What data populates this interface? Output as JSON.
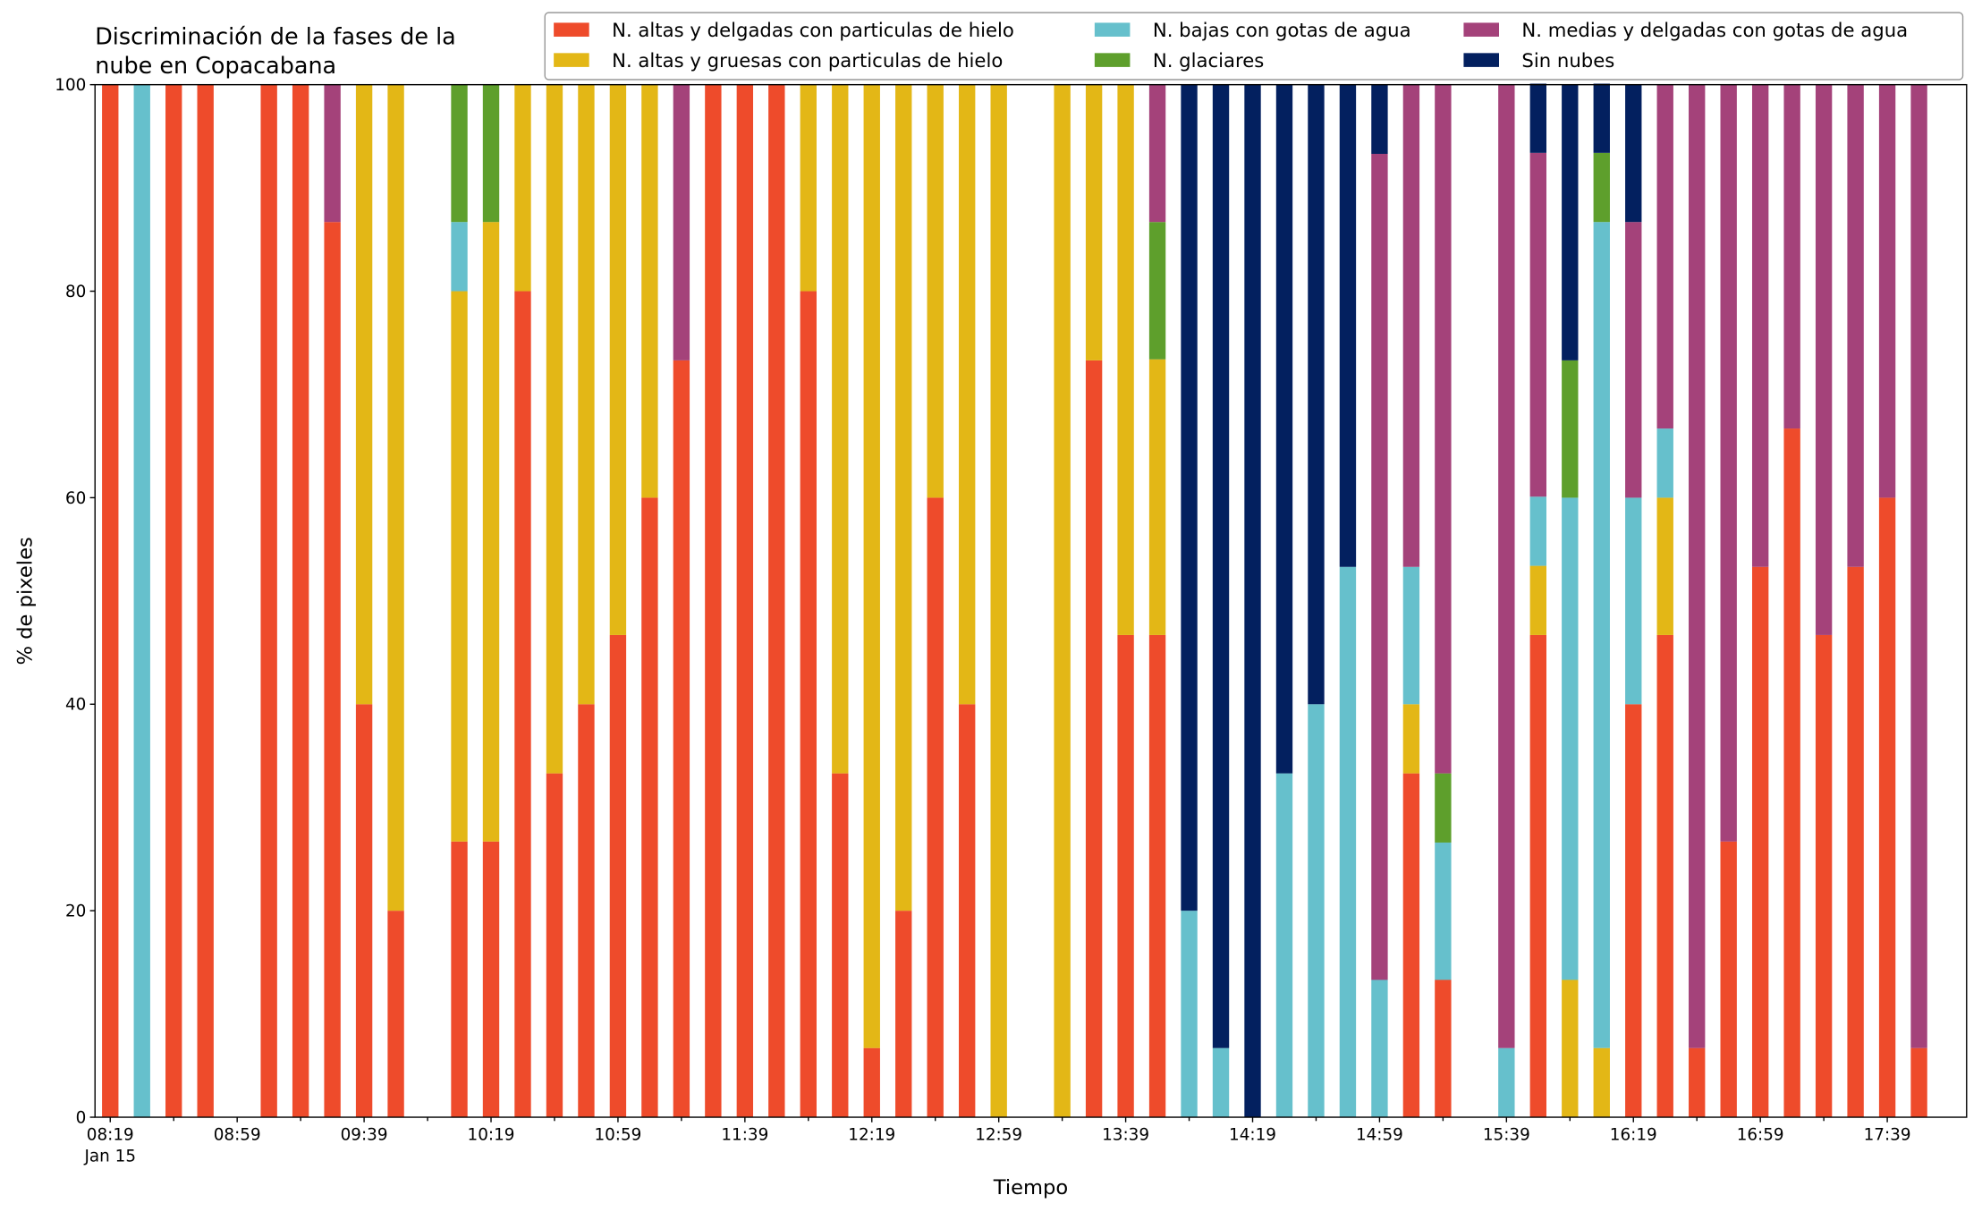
{
  "chart_data": {
    "type": "stacked_bar",
    "title": "Discriminación de la fases de la\nnube en Copacabana",
    "xlabel": "Tiempo",
    "ylabel": "% de pixeles",
    "date_label": "Jan 15",
    "categories": [
      "08:19",
      null,
      null,
      null,
      "08:59",
      null,
      null,
      null,
      "09:39",
      null,
      null,
      null,
      "10:19",
      null,
      null,
      null,
      "10:59",
      null,
      null,
      null,
      "11:39",
      null,
      null,
      null,
      "12:19",
      null,
      null,
      null,
      "12:59",
      null,
      null,
      null,
      "13:39",
      null,
      null,
      null,
      "14:19",
      null,
      null,
      null,
      "14:59",
      null,
      null,
      null,
      "15:39",
      null,
      null,
      null,
      "16:19",
      null,
      null,
      null,
      "16:59",
      null,
      null,
      null,
      "17:39",
      null
    ],
    "ylim": [
      0,
      100
    ],
    "yticks": [
      0,
      20,
      40,
      60,
      80,
      100
    ],
    "legend": "upper right",
    "series": [
      {
        "name": "N. altas y delgadas con particulas de hielo",
        "color": "#ee4b2b",
        "values": [
          100,
          0,
          100,
          100,
          0,
          100,
          100,
          86.7,
          40,
          20,
          0,
          26.7,
          26.7,
          80,
          33.3,
          40,
          46.7,
          60,
          73.3,
          100,
          100,
          100,
          80,
          33.3,
          6.7,
          20,
          60,
          40,
          0,
          0,
          0,
          73.3,
          46.7,
          46.7,
          0,
          0,
          0,
          0,
          0,
          0,
          0,
          33.3,
          13.3,
          0,
          0,
          46.7,
          0,
          0,
          40,
          46.7,
          6.7,
          26.7,
          53.3,
          66.7,
          46.7,
          53.3,
          60,
          6.7
        ]
      },
      {
        "name": "N. altas y gruesas con particulas de hielo",
        "color": "#e3b716",
        "values": [
          0,
          0,
          0,
          0,
          0,
          0,
          0,
          0,
          60,
          80,
          0,
          53.3,
          60,
          20,
          66.7,
          60,
          53.3,
          40,
          0,
          0,
          0,
          0,
          20,
          66.7,
          93.3,
          80,
          40,
          60,
          100,
          0,
          100,
          26.7,
          53.3,
          26.7,
          0,
          0,
          0,
          0,
          0,
          0,
          0,
          6.7,
          0,
          0,
          0,
          6.7,
          13.3,
          6.7,
          0,
          13.3,
          0,
          0,
          0,
          0,
          0,
          0,
          0,
          0
        ]
      },
      {
        "name": "N. bajas con gotas de agua",
        "color": "#66c0cc",
        "values": [
          0,
          100,
          0,
          0,
          0,
          0,
          0,
          0,
          0,
          0,
          0,
          6.7,
          0,
          0,
          0,
          0,
          0,
          0,
          0,
          0,
          0,
          0,
          0,
          0,
          0,
          0,
          0,
          0,
          0,
          0,
          0,
          0,
          0,
          0,
          20,
          6.7,
          0,
          33.3,
          40,
          53.3,
          13.3,
          13.3,
          13.3,
          0,
          6.7,
          6.7,
          46.7,
          80,
          20,
          6.7,
          0,
          0,
          0,
          0,
          0,
          0,
          0,
          0
        ]
      },
      {
        "name": "N. glaciares",
        "color": "#5e9f2c",
        "values": [
          0,
          0,
          0,
          0,
          0,
          0,
          0,
          0,
          0,
          0,
          0,
          13.3,
          13.3,
          0,
          0,
          0,
          0,
          0,
          0,
          0,
          0,
          0,
          0,
          0,
          0,
          0,
          0,
          0,
          0,
          0,
          0,
          0,
          0,
          13.3,
          0,
          0,
          0,
          0,
          0,
          0,
          0,
          0,
          6.7,
          0,
          0,
          0,
          13.3,
          6.7,
          0,
          0,
          0,
          0,
          0,
          0,
          0,
          0,
          0,
          0
        ]
      },
      {
        "name": "N. medias y delgadas con gotas de agua",
        "color": "#a4427a",
        "values": [
          0,
          0,
          0,
          0,
          0,
          0,
          0,
          13.3,
          0,
          0,
          0,
          0,
          0,
          0,
          0,
          0,
          0,
          0,
          26.7,
          0,
          0,
          0,
          0,
          0,
          0,
          0,
          0,
          0,
          0,
          0,
          0,
          0,
          0,
          13.3,
          0,
          0,
          0,
          0,
          0,
          0,
          80,
          46.7,
          66.7,
          0,
          93.3,
          33.3,
          0,
          0,
          26.7,
          33.3,
          93.3,
          73.3,
          46.7,
          33.3,
          53.3,
          46.7,
          40,
          93.3
        ]
      },
      {
        "name": "Sin nubes",
        "color": "#03205f",
        "values": [
          0,
          0,
          0,
          0,
          0,
          0,
          0,
          0,
          0,
          0,
          0,
          0,
          0,
          0,
          0,
          0,
          0,
          0,
          0,
          0,
          0,
          0,
          0,
          0,
          0,
          0,
          0,
          0,
          0,
          0,
          0,
          0,
          0,
          0,
          80,
          93.3,
          100,
          66.7,
          60,
          46.7,
          6.7,
          0,
          0,
          0,
          0,
          6.7,
          26.7,
          6.7,
          13.3,
          0,
          0,
          0,
          0,
          0,
          0,
          0,
          0,
          0
        ]
      }
    ]
  }
}
